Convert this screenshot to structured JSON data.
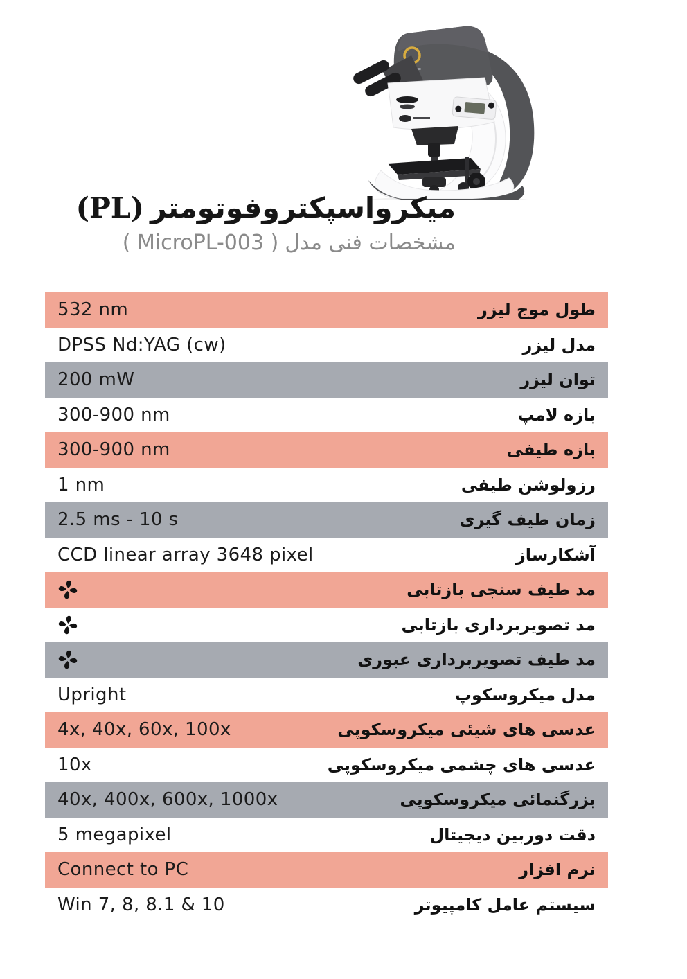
{
  "header": {
    "title_fa": "میکرواسپکتروفوتومتر",
    "title_en": "(PL)",
    "subtitle_fa": "مشخصات فنی مدل",
    "subtitle_en": "( MicroPL-003 )"
  },
  "hero": {
    "illustration": "upright-microscope-illustration"
  },
  "colors": {
    "row_salmon": "#F1A695",
    "row_gray": "#A6AAB1",
    "title_text": "#161616",
    "subtitle_text": "#8A8A8A",
    "body_text": "#1B1B1B",
    "check_icon": "#121212",
    "logo_ring_gold": "#D8AC3F"
  },
  "table": {
    "rows": [
      {
        "label": "طول موج لیزر",
        "value": "532 nm",
        "bg": "salmon",
        "type": "text"
      },
      {
        "label": "مدل لیزر",
        "value": "DPSS Nd:YAG (cw)",
        "bg": "white",
        "type": "text"
      },
      {
        "label": "توان لیزر",
        "value": "200 mW",
        "bg": "gray",
        "type": "text"
      },
      {
        "label": "بازه لامپ",
        "value": "300-900 nm",
        "bg": "white",
        "type": "text"
      },
      {
        "label": "بازه طیفی",
        "value": "300-900 nm",
        "bg": "salmon",
        "type": "text"
      },
      {
        "label": "رزولوشن طیفی",
        "value": "1 nm",
        "bg": "white",
        "type": "text"
      },
      {
        "label": "زمان طیف گیری",
        "value": "2.5 ms - 10 s",
        "bg": "gray",
        "type": "text"
      },
      {
        "label": "آشکارساز",
        "value": "CCD linear array 3648 pixel",
        "bg": "white",
        "type": "text"
      },
      {
        "label": "مد طیف سنجی بازتابی",
        "value": "",
        "bg": "salmon",
        "type": "icon",
        "icon": "four-petal-asterisk-icon"
      },
      {
        "label": "مد تصویربرداری بازتابی",
        "value": "",
        "bg": "white",
        "type": "icon",
        "icon": "four-petal-asterisk-icon"
      },
      {
        "label": "مد طیف تصویربرداری عبوری",
        "value": "",
        "bg": "gray",
        "type": "icon",
        "icon": "four-petal-asterisk-icon"
      },
      {
        "label": "مدل میکروسکوپ",
        "value": "Upright",
        "bg": "white",
        "type": "text"
      },
      {
        "label": "عدسی های شیئی میکروسکوپی",
        "value": "4x, 40x, 60x, 100x",
        "bg": "salmon",
        "type": "text"
      },
      {
        "label": "عدسی های چشمی میکروسکوپی",
        "value": "10x",
        "bg": "white",
        "type": "text"
      },
      {
        "label": "بزرگنمائی میکروسکوپی",
        "value": "40x, 400x, 600x, 1000x",
        "bg": "gray",
        "type": "text"
      },
      {
        "label": "دقت دوربین دیجیتال",
        "value": "5 megapixel",
        "bg": "white",
        "type": "text"
      },
      {
        "label": "نرم افزار",
        "value": "Connect to PC",
        "bg": "salmon",
        "type": "text"
      },
      {
        "label": "سیستم عامل کامپیوتر",
        "value": "Win 7, 8, 8.1 & 10",
        "bg": "white",
        "type": "text"
      }
    ]
  }
}
